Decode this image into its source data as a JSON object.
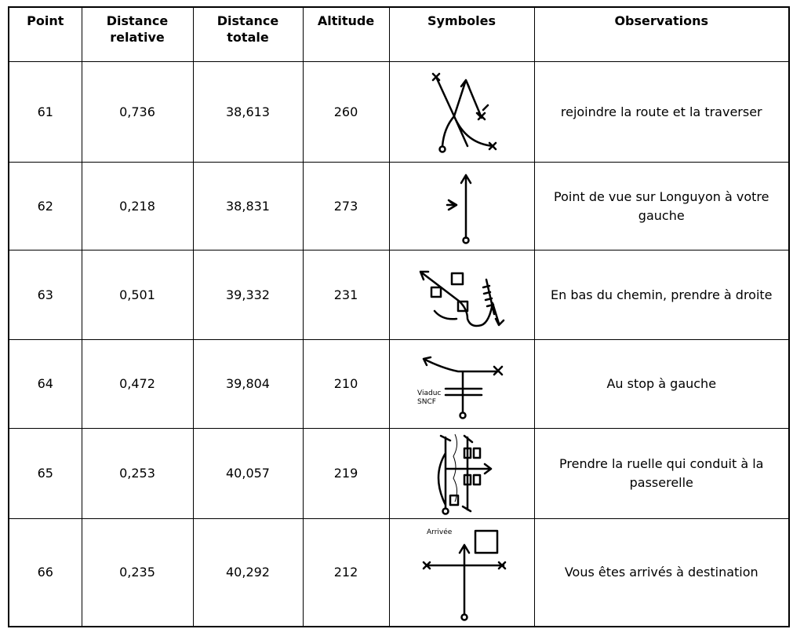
{
  "table": {
    "header": [
      "Point",
      "Distance relative",
      "Distance totale",
      "Altitude",
      "Symboles",
      "Observations"
    ],
    "rows": [
      {
        "point": "61",
        "relative": "0,736",
        "total": "38,613",
        "altitude": "260",
        "observation": "rejoindre la route et la traverser"
      },
      {
        "point": "62",
        "relative": "0,218",
        "total": "38,831",
        "altitude": "273",
        "observation": "Point de vue sur Longuyon à votre gauche"
      },
      {
        "point": "63",
        "relative": "0,501",
        "total": "39,332",
        "altitude": "231",
        "observation": "En bas du chemin, prendre à droite"
      },
      {
        "point": "64",
        "relative": "0,472",
        "total": "39,804",
        "altitude": "210",
        "symbol_text": [
          "Viaduc",
          "SNCF"
        ],
        "observation": "Au stop à gauche"
      },
      {
        "point": "65",
        "relative": "0,253",
        "total": "40,057",
        "altitude": "219",
        "observation": "Prendre la ruelle qui conduit à la passerelle"
      },
      {
        "point": "66",
        "relative": "0,235",
        "total": "40,292",
        "altitude": "212",
        "symbol_text": [
          "Arrivée"
        ],
        "observation": "Vous êtes arrivés à destination"
      }
    ]
  }
}
